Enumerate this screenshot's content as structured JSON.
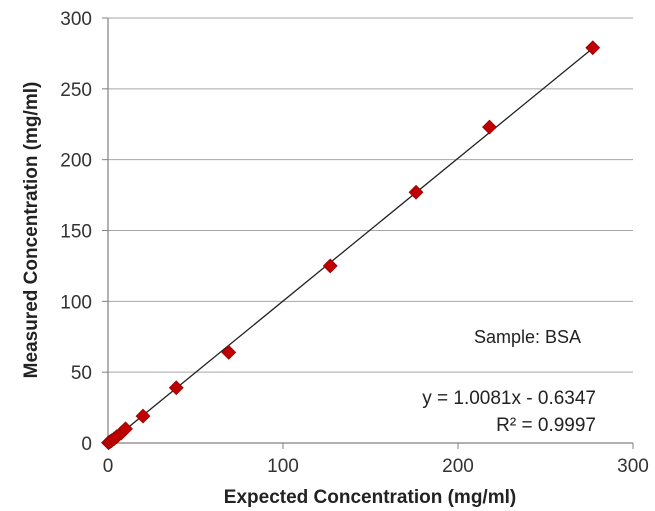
{
  "chart_data": {
    "type": "scatter",
    "title": "",
    "xlabel": "Expected Concentration (mg/ml)",
    "ylabel": "Measured Concentration (mg/ml)",
    "xlim": [
      0,
      300
    ],
    "ylim": [
      0,
      300
    ],
    "xticks": [
      0,
      100,
      200,
      300
    ],
    "yticks": [
      0,
      50,
      100,
      150,
      200,
      250,
      300
    ],
    "grid": "horizontal",
    "series": [
      {
        "marker": "diamond",
        "color": "#c00000",
        "points": [
          {
            "x": 0.3,
            "y": 0.2
          },
          {
            "x": 1,
            "y": 0.8
          },
          {
            "x": 2,
            "y": 1.6
          },
          {
            "x": 3.5,
            "y": 3
          },
          {
            "x": 5,
            "y": 4.5
          },
          {
            "x": 7.5,
            "y": 7
          },
          {
            "x": 10,
            "y": 10
          },
          {
            "x": 20,
            "y": 19
          },
          {
            "x": 39,
            "y": 39
          },
          {
            "x": 69,
            "y": 64
          },
          {
            "x": 127,
            "y": 125
          },
          {
            "x": 176,
            "y": 177
          },
          {
            "x": 218,
            "y": 223
          },
          {
            "x": 277,
            "y": 279
          }
        ]
      }
    ],
    "trendline": {
      "slope": 1.0081,
      "intercept": -0.6347,
      "x_range": [
        0,
        277
      ],
      "color": "#222222"
    },
    "annotations": {
      "sample": "Sample: BSA",
      "equation": "y = 1.0081x - 0.6347",
      "r_squared": "R² = 0.9997"
    }
  }
}
